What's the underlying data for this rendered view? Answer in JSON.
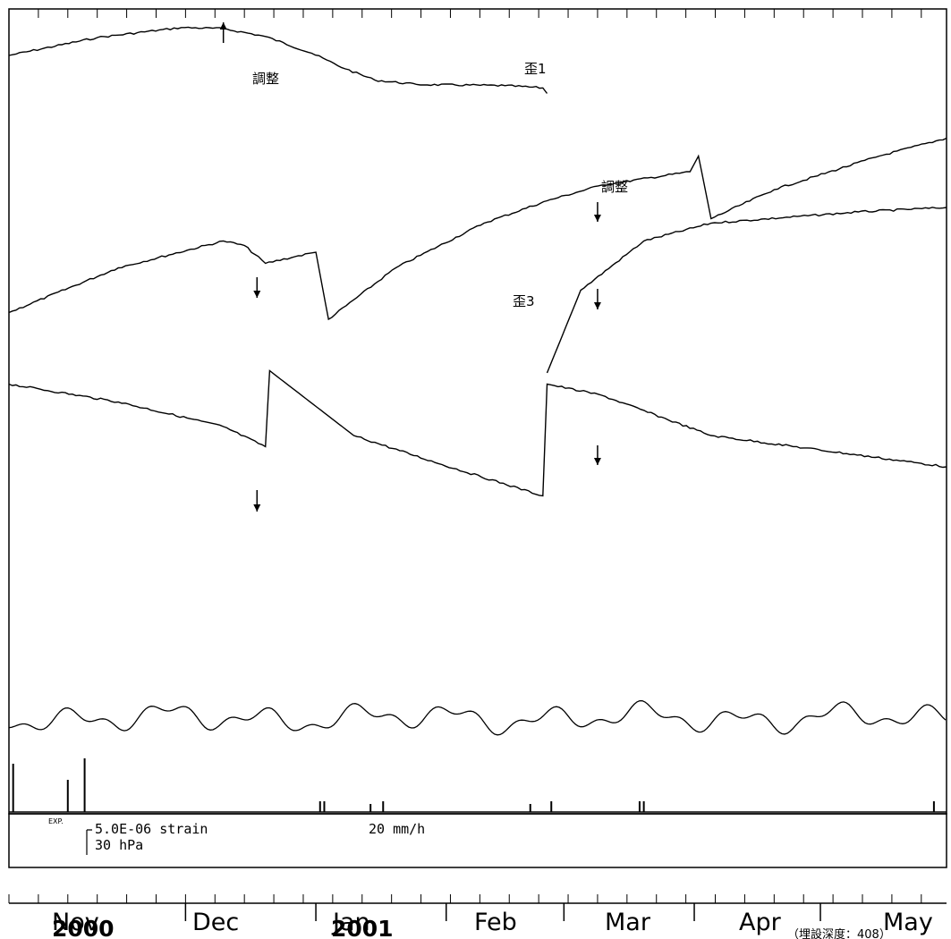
{
  "chart_data": {
    "type": "line",
    "x_axis": {
      "months": [
        "Nov",
        "Dec",
        "Jan",
        "Feb",
        "Mar",
        "Apr",
        "May"
      ],
      "years": [
        {
          "label": "2000",
          "month": "Nov"
        },
        {
          "label": "2001",
          "month": "Jan"
        }
      ],
      "range": [
        "2000-10-20",
        "2001-05-31"
      ]
    },
    "series": [
      {
        "name": "歪1",
        "units": "relative strain (5.0E-06 strain per scale unit)",
        "points": [
          [
            "2000-10-20",
            0.0
          ],
          [
            "2000-11-10",
            0.8
          ],
          [
            "2000-11-30",
            1.25
          ],
          [
            "2000-12-10",
            1.2
          ],
          [
            "2000-12-20",
            0.85
          ],
          [
            "2000-12-31",
            0.1
          ],
          [
            "2001-01-08",
            -0.6
          ],
          [
            "2001-01-15",
            -1.1
          ],
          [
            "2001-01-25",
            -1.3
          ],
          [
            "2001-02-15",
            -1.35
          ],
          [
            "2001-02-24",
            -1.45
          ],
          [
            "2001-02-25",
            -1.7
          ]
        ]
      },
      {
        "name": "歪3",
        "units": "relative strain (5.0E-06 strain per scale unit)",
        "points": [
          [
            "2000-10-20",
            -11.5
          ],
          [
            "2000-11-15",
            -9.5
          ],
          [
            "2000-12-10",
            -8.3
          ],
          [
            "2000-12-15",
            -8.5
          ],
          [
            "2000-12-20",
            -9.3
          ],
          [
            "2000-12-27",
            -9.0
          ],
          [
            "2001-01-01",
            -8.8
          ],
          [
            "2001-01-04",
            -11.8
          ],
          [
            "2001-01-20",
            -9.5
          ],
          [
            "2001-02-10",
            -7.5
          ],
          [
            "2001-02-25",
            -6.5
          ],
          [
            "2001-03-10",
            -5.8
          ],
          [
            "2001-03-31",
            -5.2
          ],
          [
            "2001-04-02",
            -4.5
          ],
          [
            "2001-04-05",
            -7.3
          ],
          [
            "2001-04-20",
            -6.0
          ],
          [
            "2001-05-15",
            -4.5
          ],
          [
            "2001-05-31",
            -3.7
          ]
        ]
      },
      {
        "name": "",
        "units": "relative strain (5.0E-06 strain per scale unit)",
        "points": [
          [
            "2001-02-25",
            -14.2
          ],
          [
            "2001-03-05",
            -10.5
          ],
          [
            "2001-03-20",
            -8.3
          ],
          [
            "2001-04-05",
            -7.5
          ],
          [
            "2001-05-10",
            -7.0
          ],
          [
            "2001-05-31",
            -6.8
          ]
        ]
      },
      {
        "name": "",
        "units": "relative strain (5.0E-06 strain per scale unit)",
        "points": [
          [
            "2000-10-20",
            -14.7
          ],
          [
            "2000-11-15",
            -15.5
          ],
          [
            "2000-12-10",
            -16.6
          ],
          [
            "2000-12-20",
            -17.5
          ],
          [
            "2000-12-21",
            -14.1
          ],
          [
            "2001-01-10",
            -17.0
          ],
          [
            "2001-01-31",
            -18.3
          ],
          [
            "2001-02-24",
            -19.7
          ],
          [
            "2001-02-25",
            -14.7
          ],
          [
            "2001-03-10",
            -15.2
          ],
          [
            "2001-04-05",
            -17.0
          ],
          [
            "2001-05-31",
            -18.4
          ]
        ]
      },
      {
        "name": "",
        "units": "hPa",
        "note": "barometric pressure, oscillating trace"
      },
      {
        "name": "",
        "units": "mm/h",
        "note": "precipitation bars",
        "bars": [
          [
            "2000-10-21",
            18
          ],
          [
            "2000-11-03",
            12
          ],
          [
            "2000-11-07",
            20
          ],
          [
            "2001-01-02",
            4
          ],
          [
            "2001-01-03",
            4
          ],
          [
            "2001-01-14",
            3
          ],
          [
            "2001-01-17",
            4
          ],
          [
            "2001-02-21",
            3
          ],
          [
            "2001-02-26",
            4
          ],
          [
            "2001-03-19",
            4
          ],
          [
            "2001-03-20",
            4
          ],
          [
            "2001-05-28",
            4
          ]
        ]
      }
    ],
    "annotations": [
      {
        "text": "調整",
        "series": "歪1",
        "date": "2000-12-10",
        "arrow": "up"
      },
      {
        "text": "調整",
        "series": "歪3",
        "date": "2001-03-09",
        "arrow": "down"
      },
      {
        "text": "",
        "series": "歪3",
        "date": "2000-12-18",
        "arrow": "down"
      },
      {
        "text": "",
        "date": "2001-03-09",
        "arrow": "down"
      },
      {
        "text": "",
        "date": "2000-12-18",
        "arrow": "down"
      },
      {
        "text": "",
        "date": "2001-03-09",
        "arrow": "down"
      }
    ],
    "scale_labels": [
      "5.0E-06 strain",
      "30 hPa",
      "20 mm/h"
    ],
    "exp_label": "EXP.",
    "grid": false,
    "legend": "none"
  },
  "footnote": "（埋設深度：408）"
}
